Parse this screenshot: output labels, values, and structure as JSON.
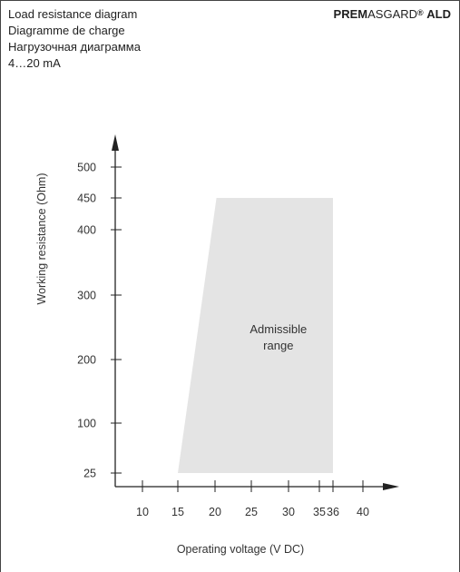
{
  "header": {
    "lines": [
      "Load resistance diagram",
      "Diagramme de charge",
      "Нагрузочная диаграмма",
      "4…20 mA"
    ]
  },
  "brand": {
    "part1": "PREM",
    "part2": "ASGARD",
    "mark": "®",
    "part3": "ALD"
  },
  "colors": {
    "region_fill": "#e4e4e4",
    "axis": "#222222",
    "text": "#333333",
    "frame": "#444444"
  },
  "chart_data": {
    "type": "area",
    "xlabel": "Operating voltage  (V DC)",
    "ylabel": "Working resistance  (Ohm)",
    "x_ticks": [
      10,
      15,
      20,
      25,
      30,
      35,
      36,
      40
    ],
    "x_tick_labels": [
      "10",
      "15",
      "20",
      "25",
      "30",
      "35",
      "36",
      "40"
    ],
    "y_ticks": [
      25,
      100,
      200,
      300,
      400,
      450,
      500
    ],
    "y_tick_labels": [
      "25",
      "100",
      "200",
      "300",
      "400",
      "450",
      "500"
    ],
    "region": {
      "label_lines": [
        "Admissible",
        "range"
      ],
      "polygon": [
        [
          15,
          25
        ],
        [
          20.2,
          450
        ],
        [
          36,
          450
        ],
        [
          36,
          25
        ]
      ]
    }
  }
}
